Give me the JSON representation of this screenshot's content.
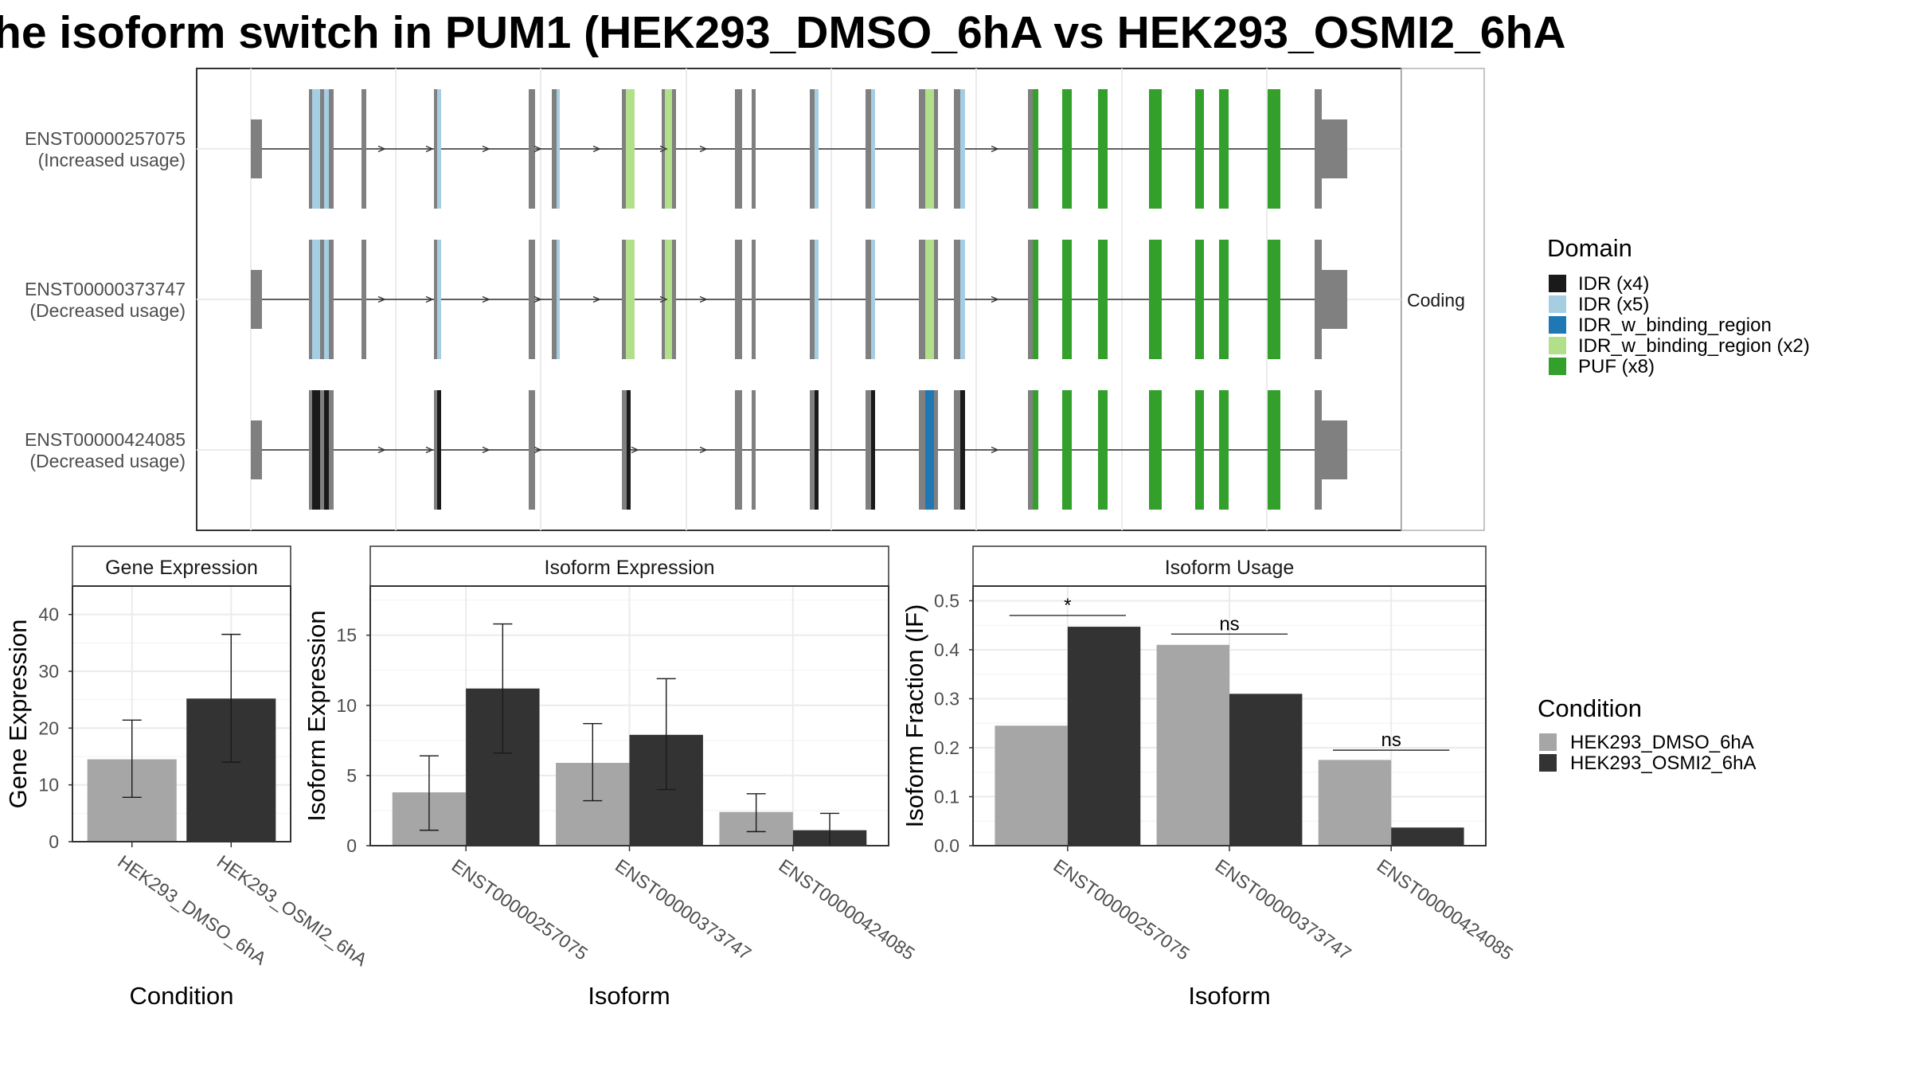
{
  "title": "he isoform switch in PUM1 (HEK293_DMSO_6hA vs HEK293_OSMI2_6hA",
  "colors": {
    "dmso": "#a6a6a6",
    "osmi": "#333333",
    "exon_gray": "#808080",
    "IDR": "#1a1a1a",
    "IDR_light": "#a6cee3",
    "IDR_w_binding_region": "#1f78b4",
    "IDR_w_binding_region_light": "#b2df8a",
    "PUF": "#33a02c"
  },
  "structure": {
    "facet_label": "Coding",
    "isoforms": [
      {
        "id": "ENST00000257075",
        "usage": "(Increased usage)"
      },
      {
        "id": "ENST00000373747",
        "usage": "(Decreased usage)"
      },
      {
        "id": "ENST00000424085",
        "usage": "(Decreased usage)"
      }
    ]
  },
  "domain_legend": {
    "title": "Domain",
    "items": [
      {
        "label": "IDR (x4)",
        "color": "#1a1a1a"
      },
      {
        "label": "IDR (x5)",
        "color": "#a6cee3"
      },
      {
        "label": "IDR_w_binding_region",
        "color": "#1f78b4"
      },
      {
        "label": "IDR_w_binding_region (x2)",
        "color": "#b2df8a"
      },
      {
        "label": "PUF (x8)",
        "color": "#33a02c"
      }
    ]
  },
  "condition_legend": {
    "title": "Condition",
    "items": [
      {
        "label": "HEK293_DMSO_6hA",
        "color": "#a6a6a6"
      },
      {
        "label": "HEK293_OSMI2_6hA",
        "color": "#333333"
      }
    ]
  },
  "chart_data": [
    {
      "type": "bar",
      "title": "Gene Expression",
      "xlabel": "Condition",
      "ylabel": "Gene Expression",
      "ylim": [
        0,
        45
      ],
      "yticks": [
        0,
        10,
        20,
        30,
        40
      ],
      "categories": [
        "HEK293_DMSO_6hA",
        "HEK293_OSMI2_6hA"
      ],
      "values": [
        14.5,
        25.2
      ],
      "error_low": [
        7.8,
        14.0
      ],
      "error_high": [
        21.4,
        36.5
      ]
    },
    {
      "type": "bar",
      "title": "Isoform Expression",
      "xlabel": "Isoform",
      "ylabel": "Isoform Expression",
      "ylim": [
        0,
        18.5
      ],
      "yticks": [
        0,
        5,
        10,
        15
      ],
      "categories": [
        "ENST00000257075",
        "ENST00000373747",
        "ENST00000424085"
      ],
      "series": [
        {
          "name": "HEK293_DMSO_6hA",
          "values": [
            3.8,
            5.9,
            2.4
          ],
          "error_low": [
            1.1,
            3.2,
            1.0
          ],
          "error_high": [
            6.4,
            8.7,
            3.7
          ]
        },
        {
          "name": "HEK293_OSMI2_6hA",
          "values": [
            11.2,
            7.9,
            1.1
          ],
          "error_low": [
            6.6,
            4.0,
            0.0
          ],
          "error_high": [
            15.8,
            11.9,
            2.3
          ]
        }
      ]
    },
    {
      "type": "bar",
      "title": "Isoform Usage",
      "xlabel": "Isoform",
      "ylabel": "Isoform Fraction (IF)",
      "ylim": [
        0,
        0.53
      ],
      "yticks": [
        0.0,
        0.1,
        0.2,
        0.3,
        0.4,
        0.5
      ],
      "ytick_labels": [
        "0.0",
        "0.1",
        "0.2",
        "0.3",
        "0.4",
        "0.5"
      ],
      "categories": [
        "ENST00000257075",
        "ENST00000373747",
        "ENST00000424085"
      ],
      "series": [
        {
          "name": "HEK293_DMSO_6hA",
          "values": [
            0.245,
            0.41,
            0.175
          ]
        },
        {
          "name": "HEK293_OSMI2_6hA",
          "values": [
            0.447,
            0.31,
            0.037
          ]
        }
      ],
      "significance": [
        {
          "label": "*",
          "level": 0.47
        },
        {
          "label": "ns",
          "level": 0.432
        },
        {
          "label": "ns",
          "level": 0.195
        }
      ]
    }
  ]
}
